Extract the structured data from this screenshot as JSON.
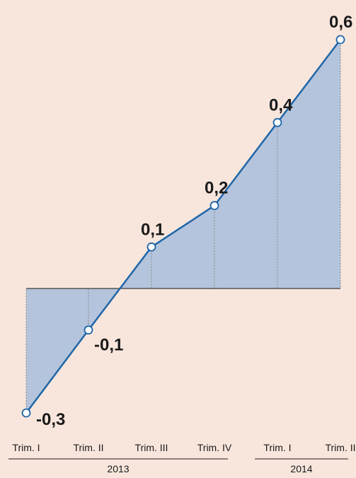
{
  "chart_data": {
    "type": "area",
    "categories": [
      "Trim. I",
      "Trim. II",
      "Trim. III",
      "Trim. IV",
      "Trim. I",
      "Trim. II"
    ],
    "values": [
      -0.3,
      -0.1,
      0.1,
      0.2,
      0.4,
      0.6
    ],
    "value_labels": [
      "-0,3",
      "-0,1",
      "0,1",
      "0,2",
      "0,4",
      "0,6"
    ],
    "groups": [
      {
        "label": "2013",
        "span": [
          0,
          3
        ]
      },
      {
        "label": "2014",
        "span": [
          4,
          5
        ]
      }
    ],
    "ylim": [
      -0.3,
      0.6
    ],
    "title": "",
    "xlabel": "",
    "ylabel": "",
    "grid": false,
    "colors": {
      "background": "#f8e6dc",
      "line": "#1f66a8",
      "fill": "#b4c4dc",
      "baseline": "#555555",
      "drop_line": "#888888",
      "text": "#1a1a1a"
    }
  }
}
